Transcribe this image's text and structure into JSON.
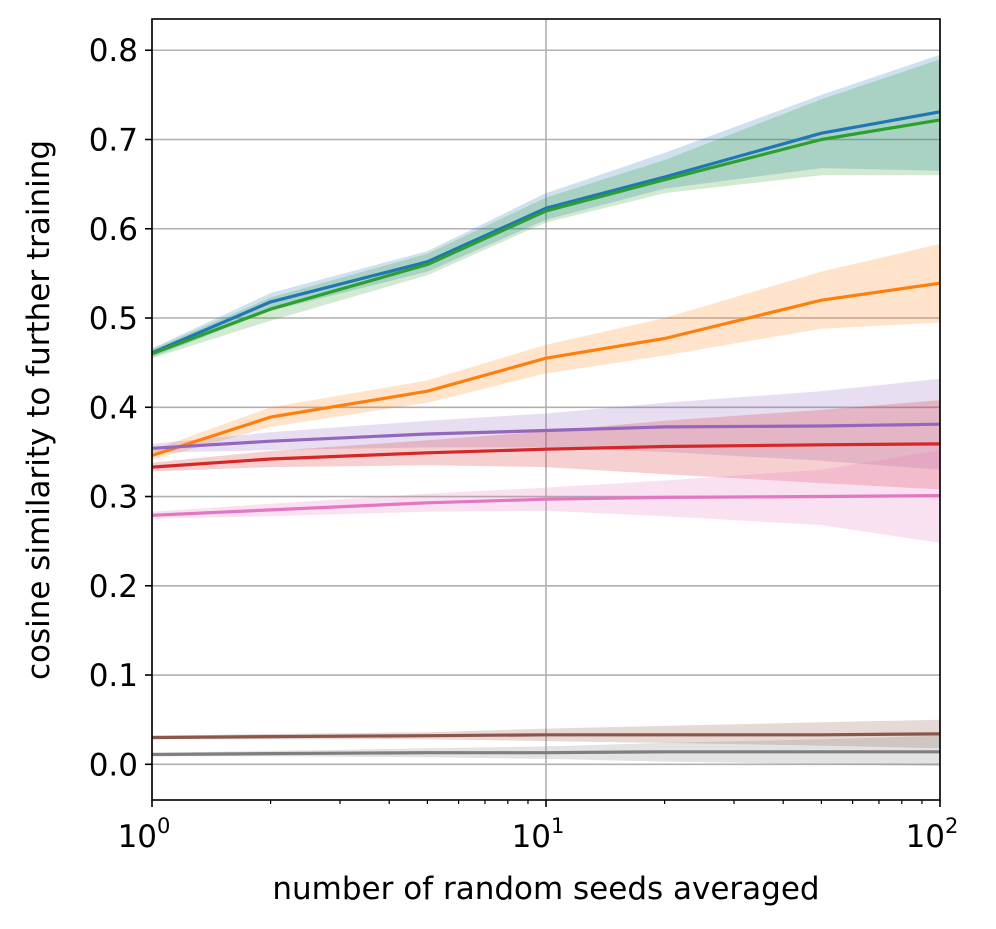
{
  "chart_data": {
    "type": "line",
    "title": "",
    "xlabel": "number of random seeds averaged",
    "ylabel": "cosine similarity to further training",
    "xscale": "log",
    "xlim": [
      1,
      100
    ],
    "ylim": [
      -0.04,
      0.835
    ],
    "grid": true,
    "x": [
      1,
      2,
      5,
      10,
      20,
      50,
      100
    ],
    "xticks": [
      {
        "value": 1,
        "base": "10",
        "exp": "0"
      },
      {
        "value": 10,
        "base": "10",
        "exp": "1"
      },
      {
        "value": 100,
        "base": "10",
        "exp": "2"
      }
    ],
    "yticks": [
      {
        "value": 0.0,
        "label": "0.0"
      },
      {
        "value": 0.1,
        "label": "0.1"
      },
      {
        "value": 0.2,
        "label": "0.2"
      },
      {
        "value": 0.3,
        "label": "0.3"
      },
      {
        "value": 0.4,
        "label": "0.4"
      },
      {
        "value": 0.5,
        "label": "0.5"
      },
      {
        "value": 0.6,
        "label": "0.6"
      },
      {
        "value": 0.7,
        "label": "0.7"
      },
      {
        "value": 0.8,
        "label": "0.8"
      }
    ],
    "series": [
      {
        "name": "blue",
        "color": "#1f77b4",
        "values": [
          0.461,
          0.518,
          0.563,
          0.623,
          0.658,
          0.707,
          0.731
        ],
        "lower": [
          0.456,
          0.508,
          0.552,
          0.61,
          0.645,
          0.668,
          0.665
        ],
        "upper": [
          0.466,
          0.528,
          0.575,
          0.64,
          0.685,
          0.75,
          0.795
        ]
      },
      {
        "name": "green",
        "color": "#2ca02c",
        "values": [
          0.46,
          0.51,
          0.56,
          0.62,
          0.655,
          0.7,
          0.722
        ],
        "lower": [
          0.455,
          0.497,
          0.548,
          0.607,
          0.64,
          0.66,
          0.66
        ],
        "upper": [
          0.465,
          0.523,
          0.572,
          0.635,
          0.677,
          0.745,
          0.79
        ]
      },
      {
        "name": "orange",
        "color": "#ff7f0e",
        "values": [
          0.346,
          0.389,
          0.418,
          0.455,
          0.477,
          0.52,
          0.539
        ],
        "lower": [
          0.341,
          0.378,
          0.405,
          0.438,
          0.458,
          0.488,
          0.495
        ],
        "upper": [
          0.352,
          0.4,
          0.43,
          0.47,
          0.5,
          0.552,
          0.583
        ]
      },
      {
        "name": "purple",
        "color": "#9467bd",
        "values": [
          0.354,
          0.362,
          0.37,
          0.374,
          0.378,
          0.379,
          0.381
        ],
        "lower": [
          0.349,
          0.352,
          0.355,
          0.355,
          0.35,
          0.34,
          0.33
        ],
        "upper": [
          0.359,
          0.372,
          0.385,
          0.393,
          0.405,
          0.418,
          0.432
        ]
      },
      {
        "name": "red",
        "color": "#d62728",
        "values": [
          0.333,
          0.342,
          0.349,
          0.353,
          0.356,
          0.358,
          0.359
        ],
        "lower": [
          0.328,
          0.333,
          0.335,
          0.333,
          0.325,
          0.315,
          0.308
        ],
        "upper": [
          0.338,
          0.351,
          0.363,
          0.373,
          0.385,
          0.397,
          0.408
        ]
      },
      {
        "name": "pink",
        "color": "#e377c2",
        "values": [
          0.279,
          0.285,
          0.293,
          0.297,
          0.299,
          0.3,
          0.301
        ],
        "lower": [
          0.275,
          0.278,
          0.283,
          0.284,
          0.278,
          0.268,
          0.248
        ],
        "upper": [
          0.283,
          0.292,
          0.303,
          0.31,
          0.318,
          0.33,
          0.352
        ]
      },
      {
        "name": "brown",
        "color": "#8c564b",
        "values": [
          0.03,
          0.031,
          0.032,
          0.033,
          0.033,
          0.033,
          0.034
        ],
        "lower": [
          0.028,
          0.028,
          0.028,
          0.026,
          0.024,
          0.021,
          0.018
        ],
        "upper": [
          0.032,
          0.034,
          0.036,
          0.04,
          0.043,
          0.047,
          0.05
        ]
      },
      {
        "name": "gray",
        "color": "#7f7f7f",
        "values": [
          0.011,
          0.012,
          0.013,
          0.013,
          0.014,
          0.014,
          0.014
        ],
        "lower": [
          0.009,
          0.009,
          0.008,
          0.006,
          0.003,
          0.0,
          -0.002
        ],
        "upper": [
          0.013,
          0.015,
          0.018,
          0.02,
          0.024,
          0.028,
          0.032
        ]
      }
    ]
  }
}
